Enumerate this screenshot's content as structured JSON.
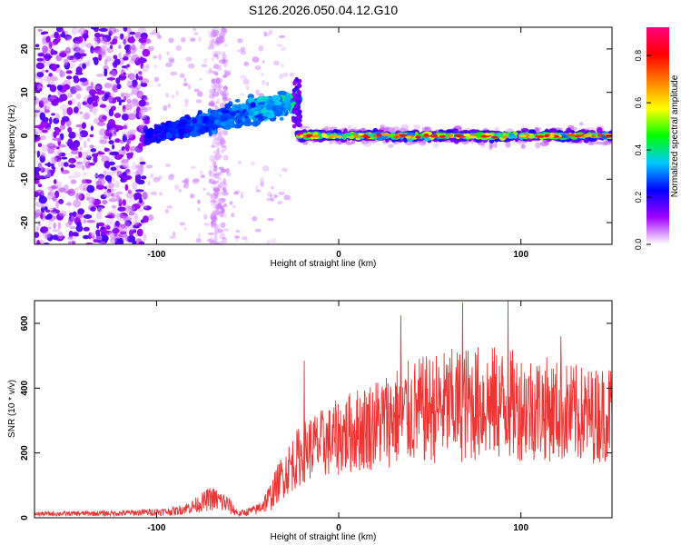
{
  "figure_title": "S126.2026.050.04.12.G10",
  "chart_data": [
    {
      "type": "heatmap",
      "title": "",
      "xlabel": "Height of straight line (km)",
      "ylabel": "Frequency (Hz)",
      "xlim": [
        -167,
        150
      ],
      "ylim": [
        -25,
        25
      ],
      "x_ticks": [
        -100,
        0,
        100
      ],
      "x_tick_labels": [
        "-100",
        "0",
        "100"
      ],
      "y_ticks": [
        -20,
        -10,
        0,
        10,
        20
      ],
      "y_tick_labels": [
        "-20",
        "-10",
        "0",
        "10",
        "20"
      ],
      "grid": false,
      "colorbar": {
        "label": "Normalized spectral amplitude",
        "range": [
          0,
          0.92
        ],
        "ticks": [
          0.0,
          0.2,
          0.4,
          0.6,
          0.8
        ],
        "tick_labels": [
          "0.0",
          "0.2",
          "0.4",
          "0.6",
          "0.8"
        ],
        "colormap": [
          "#ffffff",
          "#a000ff",
          "#0000ff",
          "#00c8ff",
          "#00ff00",
          "#ffff00",
          "#ff8000",
          "#ff0000",
          "#ff0080"
        ]
      },
      "regions": [
        {
          "name": "broadband noise",
          "x_range": [
            -167,
            -105
          ],
          "freq_range": [
            -25,
            25
          ],
          "amplitude": 0.15
        },
        {
          "name": "sparse noise stripe",
          "x_range": [
            -70,
            -62
          ],
          "freq_range": [
            -25,
            25
          ],
          "amplitude": 0.05
        },
        {
          "name": "rising signal",
          "x_range": [
            -105,
            -22
          ],
          "freq_center": [
            0,
            8
          ],
          "amplitude": 0.3
        },
        {
          "name": "steady tone",
          "x_range": [
            -22,
            150
          ],
          "freq_center": 0,
          "amplitude": 0.55
        }
      ]
    },
    {
      "type": "line",
      "title": "",
      "xlabel": "Height of straight line (km)",
      "ylabel": "SNR (10 * v/v)",
      "xlim": [
        -167,
        150
      ],
      "ylim": [
        0,
        670
      ],
      "x_ticks": [
        -100,
        0,
        100
      ],
      "x_tick_labels": [
        "-100",
        "0",
        "100"
      ],
      "y_ticks": [
        0,
        200,
        400,
        600
      ],
      "y_tick_labels": [
        "0",
        "200",
        "400",
        "600"
      ],
      "grid": false,
      "series": [
        {
          "name": "SNR",
          "color": "#ee3333",
          "envelope_x": [
            -167,
            -120,
            -90,
            -80,
            -70,
            -62,
            -55,
            -45,
            -38,
            -32,
            -25,
            -18,
            -12,
            -5,
            0,
            10,
            20,
            30,
            40,
            50,
            60,
            70,
            80,
            90,
            100,
            110,
            120,
            130,
            140,
            150
          ],
          "envelope_mean": [
            12,
            14,
            20,
            35,
            60,
            45,
            12,
            25,
            60,
            120,
            170,
            210,
            225,
            235,
            250,
            270,
            290,
            310,
            325,
            335,
            345,
            350,
            355,
            350,
            345,
            340,
            330,
            320,
            315,
            330
          ],
          "envelope_amp": [
            6,
            8,
            12,
            20,
            35,
            30,
            8,
            15,
            40,
            60,
            80,
            90,
            95,
            100,
            110,
            120,
            130,
            140,
            150,
            155,
            160,
            165,
            165,
            160,
            155,
            150,
            145,
            140,
            135,
            140
          ],
          "peaks": [
            {
              "x": -19,
              "y": 485
            },
            {
              "x": 68,
              "y": 665
            },
            {
              "x": 93,
              "y": 670
            },
            {
              "x": 34,
              "y": 625
            },
            {
              "x": 122,
              "y": 560
            }
          ]
        }
      ]
    }
  ]
}
